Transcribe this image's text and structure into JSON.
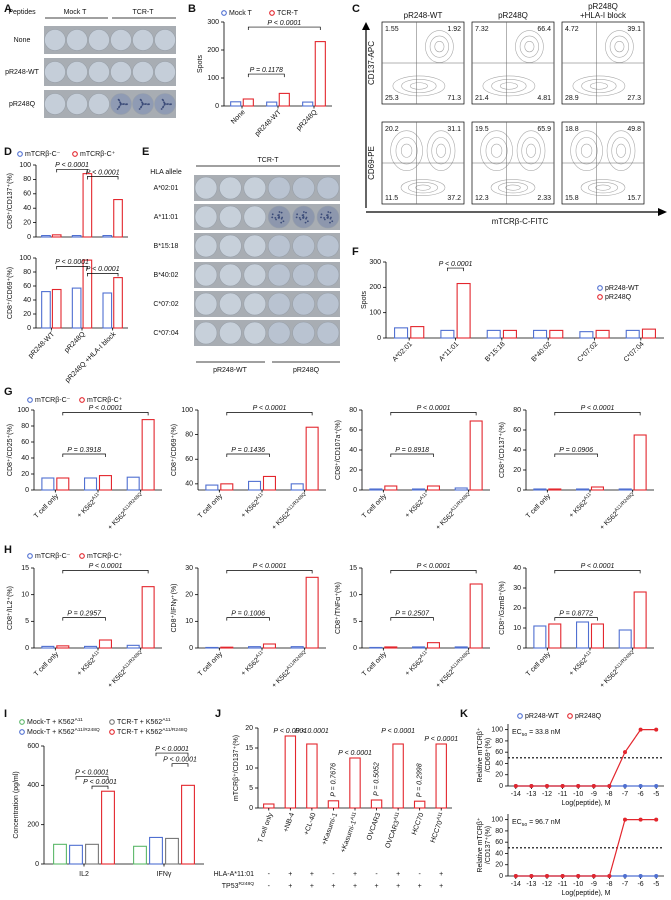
{
  "panel_labels": [
    "A",
    "B",
    "C",
    "D",
    "E",
    "F",
    "G",
    "H",
    "I",
    "J",
    "K"
  ],
  "elispot_a": {
    "corner": "Peptides",
    "columns": [
      "Mock T",
      "TCR-T"
    ],
    "rows": [
      "None",
      "pR248-WT",
      "pR248Q"
    ]
  },
  "flow_c": {
    "column_titles": [
      [
        "pR248-WT"
      ],
      [
        "pR248Q"
      ],
      [
        "pR248Q",
        "+HLA-I block"
      ]
    ],
    "y_labels": [
      "CD137-APC",
      "CD69-PE"
    ],
    "x_label": "mTCRβ-C-FITC",
    "quadrants": [
      [
        [
          1.55,
          1.92,
          25.3,
          71.3
        ],
        [
          7.32,
          66.4,
          21.4,
          4.81
        ],
        [
          4.72,
          39.1,
          28.9,
          27.3
        ]
      ],
      [
        [
          20.2,
          31.1,
          11.5,
          37.2
        ],
        [
          19.5,
          65.9,
          12.3,
          2.33
        ],
        [
          18.8,
          49.8,
          15.8,
          15.7
        ]
      ]
    ]
  },
  "elispot_e": {
    "header": "TCR-T",
    "row_header": "HLA allele",
    "rows": [
      "A*02:01",
      "A*11:01",
      "B*15:18",
      "B*40:02",
      "C*07:02",
      "C*07:04"
    ],
    "groups": [
      "pR248-WT",
      "pR248Q"
    ]
  },
  "chart_data": [
    {
      "type": "bar",
      "y_label": "Spots",
      "categories": [
        "None",
        "pR248-WT",
        "pR248Q"
      ],
      "series": [
        {
          "name": "Mock T",
          "color": "#4f6fd1",
          "values": [
            15,
            14,
            14
          ]
        },
        {
          "name": "TCR-T",
          "color": "#e3262d",
          "values": [
            25,
            45,
            230
          ]
        }
      ],
      "ylim": [
        0,
        300
      ],
      "yticks": [
        0,
        100,
        200,
        300
      ],
      "annotations": [
        "P = 0.1178",
        "P < 0.0001"
      ]
    },
    {
      "type": "bar",
      "y_label": "CD8⁺/CD137⁺(%)",
      "categories": [
        null,
        null,
        null
      ],
      "series": [
        {
          "name": "mTCRβ-C⁻",
          "color": "#4f6fd1",
          "values": [
            2,
            2,
            2
          ]
        },
        {
          "name": "mTCRβ-C⁺",
          "color": "#e3262d",
          "values": [
            3,
            88,
            52
          ]
        }
      ],
      "ylim": [
        0,
        100
      ],
      "yticks": [
        0,
        20,
        40,
        60,
        80,
        100
      ],
      "annotations": [
        "P < 0.0001",
        "P < 0.0001"
      ]
    },
    {
      "type": "bar",
      "y_label": "CD8⁺/CD69⁺(%)",
      "categories": [
        "pR248-WT",
        "pR248Q",
        "pR248Q +HLA-I block"
      ],
      "series": [
        {
          "color": "#4f6fd1",
          "values": [
            52,
            57,
            50
          ]
        },
        {
          "color": "#e3262d",
          "values": [
            55,
            97,
            72
          ]
        }
      ],
      "ylim": [
        0,
        100
      ],
      "yticks": [
        0,
        20,
        40,
        60,
        80,
        100
      ],
      "annotations": [
        "P < 0.0001",
        "P < 0.0001"
      ]
    },
    {
      "type": "bar",
      "y_label": "Spots",
      "categories": [
        "A*02:01",
        "A*11:01",
        "B*15:18",
        "B*40:02",
        "C*07:02",
        "C*07:04"
      ],
      "series": [
        {
          "name": "pR248-WT",
          "color": "#4f6fd1",
          "values": [
            40,
            30,
            30,
            30,
            25,
            30
          ]
        },
        {
          "name": "pR248Q",
          "color": "#e3262d",
          "values": [
            45,
            215,
            30,
            30,
            30,
            35
          ]
        }
      ],
      "ylim": [
        0,
        300
      ],
      "yticks": [
        0,
        100,
        200,
        300
      ],
      "annotations": [
        "P < 0.0001"
      ]
    },
    {
      "type": "bar",
      "y_label": "CD8⁺/CD25⁺(%)",
      "categories": [
        "T cell only",
        "+ K562",
        "+ K562"
      ],
      "category_sups": [
        null,
        "A11",
        "A11/R248Q"
      ],
      "series": [
        {
          "name": "mTCRβ-C⁻",
          "color": "#4f6fd1",
          "values": [
            15,
            15,
            16
          ]
        },
        {
          "name": "mTCRβ-C⁺",
          "color": "#e3262d",
          "values": [
            15,
            18,
            88
          ]
        }
      ],
      "ylim": [
        0,
        100
      ],
      "yticks": [
        0,
        20,
        40,
        60,
        80,
        100
      ],
      "annotations": [
        "P = 0.3918",
        "P < 0.0001"
      ]
    },
    {
      "type": "bar",
      "y_label": "CD8⁺/CD69⁺(%)",
      "categories": [
        "T cell only",
        "+ K562",
        "+ K562"
      ],
      "category_sups": [
        null,
        "A11",
        "A11/R248Q"
      ],
      "series": [
        {
          "color": "#4f6fd1",
          "values": [
            39,
            42,
            40
          ]
        },
        {
          "color": "#e3262d",
          "values": [
            40,
            46,
            86
          ]
        }
      ],
      "ylim": [
        35,
        100
      ],
      "yticks": [
        40,
        60,
        80,
        100
      ],
      "annotations": [
        "P = 0.1436",
        "P < 0.0001"
      ]
    },
    {
      "type": "bar",
      "y_label": "CD8⁺/CD107a⁺(%)",
      "categories": [
        "T cell only",
        "+ K562",
        "+ K562"
      ],
      "category_sups": [
        null,
        "A11",
        "A11/R248Q"
      ],
      "series": [
        {
          "color": "#4f6fd1",
          "values": [
            1,
            1,
            2
          ]
        },
        {
          "color": "#e3262d",
          "values": [
            4,
            4,
            69
          ]
        }
      ],
      "ylim": [
        0,
        80
      ],
      "yticks": [
        0,
        20,
        40,
        60,
        80
      ],
      "annotations": [
        "P = 0.8918",
        "P < 0.0001"
      ]
    },
    {
      "type": "bar",
      "y_label": "CD8⁺/CD137⁺(%)",
      "categories": [
        "T cell only",
        "+ K562",
        "+ K562"
      ],
      "category_sups": [
        null,
        "A11",
        "A11/R248Q"
      ],
      "series": [
        {
          "color": "#4f6fd1",
          "values": [
            1,
            1,
            1
          ]
        },
        {
          "color": "#e3262d",
          "values": [
            1,
            3,
            55
          ]
        }
      ],
      "ylim": [
        0,
        80
      ],
      "yticks": [
        0,
        20,
        40,
        60,
        80
      ],
      "annotations": [
        "P = 0.0906",
        "P < 0.0001"
      ]
    },
    {
      "type": "bar",
      "y_label": "CD8⁺/IL2⁺(%)",
      "categories": [
        "T cell only",
        "+ K562",
        "+ K562"
      ],
      "category_sups": [
        null,
        "A11",
        "A11/R248Q"
      ],
      "series": [
        {
          "name": "mTCRβ-C⁻",
          "color": "#4f6fd1",
          "values": [
            0.3,
            0.3,
            0.5
          ]
        },
        {
          "name": "mTCRβ-C⁺",
          "color": "#e3262d",
          "values": [
            0.4,
            1.5,
            11.5
          ]
        }
      ],
      "ylim": [
        0,
        15
      ],
      "yticks": [
        0,
        5,
        10,
        15
      ],
      "annotations": [
        "P = 0.2957",
        "P < 0.0001"
      ]
    },
    {
      "type": "bar",
      "y_label": "CD8⁺/IFNγ⁺(%)",
      "categories": [
        "T cell only",
        "+ K562",
        "+ K562"
      ],
      "category_sups": [
        null,
        "A11",
        "A11/R248Q"
      ],
      "series": [
        {
          "color": "#4f6fd1",
          "values": [
            0.2,
            0.5,
            0.5
          ]
        },
        {
          "color": "#e3262d",
          "values": [
            0.3,
            1.5,
            26.5
          ]
        }
      ],
      "ylim": [
        0,
        30
      ],
      "yticks": [
        0,
        10,
        20,
        30
      ],
      "annotations": [
        "P = 0.1006",
        "P < 0.0001"
      ]
    },
    {
      "type": "bar",
      "y_label": "CD8⁺/TNFα⁺(%)",
      "categories": [
        "T cell only",
        "+ K562",
        "+ K562"
      ],
      "category_sups": [
        null,
        "A11",
        "A11/R248Q"
      ],
      "series": [
        {
          "color": "#4f6fd1",
          "values": [
            0.1,
            0.2,
            0.2
          ]
        },
        {
          "color": "#e3262d",
          "values": [
            0.2,
            1,
            12
          ]
        }
      ],
      "ylim": [
        0,
        15
      ],
      "yticks": [
        0,
        5,
        10,
        15
      ],
      "annotations": [
        "P = 0.2507",
        "P < 0.0001"
      ]
    },
    {
      "type": "bar",
      "y_label": "CD8⁺/GzmB⁺(%)",
      "categories": [
        "T cell only",
        "+ K562",
        "+ K562"
      ],
      "category_sups": [
        null,
        "A11",
        "A11/R248Q"
      ],
      "series": [
        {
          "color": "#4f6fd1",
          "values": [
            11,
            13,
            9
          ]
        },
        {
          "color": "#e3262d",
          "values": [
            12,
            12,
            28
          ]
        }
      ],
      "ylim": [
        0,
        40
      ],
      "yticks": [
        0,
        10,
        20,
        30,
        40
      ],
      "annotations": [
        "P = 0.8772",
        "P < 0.0001"
      ]
    },
    {
      "type": "bar",
      "y_label": "Concentration (pg/ml)",
      "categories": [
        "IL2",
        "IFNγ"
      ],
      "series": [
        {
          "name": "Mock-T + K562",
          "name_sup": "A11",
          "color": "#5cb86a",
          "values": [
            100,
            90
          ]
        },
        {
          "name": "Mock-T + K562",
          "name_sup": "A11/R248Q",
          "color": "#4f6fd1",
          "values": [
            95,
            135
          ]
        },
        {
          "name": "TCR-T + K562",
          "name_sup": "A11",
          "color": "#777777",
          "values": [
            100,
            130
          ]
        },
        {
          "name": "TCR-T + K562",
          "name_sup": "A11/R248Q",
          "color": "#e3262d",
          "values": [
            370,
            400
          ]
        }
      ],
      "ylim": [
        0,
        600
      ],
      "yticks": [
        0,
        200,
        400,
        600
      ],
      "annotations": [
        "P < 0.0001",
        "P < 0.0001",
        "P < 0.0001",
        "P < 0.0001"
      ]
    },
    {
      "type": "bar",
      "y_label": "mTCRβ⁺/CD137⁺(%)",
      "categories": [
        "T cell only",
        "+NB-4",
        "+CL-40",
        "+Kasumi-1",
        "+Kasumi-1",
        "OVCAR3",
        "OVCAR3",
        "HCC70",
        "HCC70"
      ],
      "category_sups": [
        null,
        null,
        null,
        null,
        "A11",
        null,
        "A11",
        null,
        "A11"
      ],
      "values": [
        1,
        18,
        16,
        1.8,
        12.5,
        2,
        16,
        1.7,
        16
      ],
      "color": "#e3262d",
      "ylim": [
        0,
        20
      ],
      "yticks": [
        0,
        5,
        10,
        15,
        20
      ],
      "annotations": [
        "P < 0.0001",
        "P < 0.0001",
        "P = 0.7676",
        "P < 0.0001",
        "P = 0.5052",
        "P < 0.0001",
        "P = 0.2998",
        "P < 0.0001"
      ],
      "rows": [
        {
          "label": "HLA-A*11:01",
          "signs": [
            "-",
            "+",
            "+",
            "-",
            "+",
            "-",
            "+",
            "-",
            "+"
          ]
        },
        {
          "label": "TP53",
          "sup": "R248Q",
          "signs": [
            "-",
            "+",
            "+",
            "+",
            "+",
            "+",
            "+",
            "+",
            "+"
          ]
        }
      ]
    },
    {
      "type": "line",
      "y_label": [
        "Relative mTCRβ⁺",
        "/CD69⁺(%)"
      ],
      "x_label": "Log(peptide), M",
      "x": [
        -14,
        -13,
        -12,
        -11,
        -10,
        -9,
        -8,
        -7,
        -6,
        -5
      ],
      "series": [
        {
          "name": "pR248-WT",
          "color": "#4f6fd1",
          "values": [
            0,
            0,
            0,
            0,
            0,
            0,
            0,
            0,
            0,
            0
          ]
        },
        {
          "name": "pR248Q",
          "color": "#e3262d",
          "values": [
            0,
            0,
            0,
            0,
            0,
            0,
            0,
            60,
            100,
            100
          ]
        }
      ],
      "xlim": [
        -14.5,
        -4.5
      ],
      "xticks": [
        -14,
        -13,
        -12,
        -11,
        -10,
        -9,
        -8,
        -7,
        -6,
        -5
      ],
      "ylim": [
        0,
        110
      ],
      "yticks": [
        0,
        20,
        40,
        60,
        80,
        100
      ],
      "reference_line": 50,
      "ec50": [
        "EC",
        "50",
        " = 33.8 nM"
      ]
    },
    {
      "type": "line",
      "y_label": [
        "Relative mTCRβ⁺",
        "/CD137⁺(%)"
      ],
      "x_label": "Log(peptide), M",
      "x": [
        -14,
        -13,
        -12,
        -11,
        -10,
        -9,
        -8,
        -7,
        -6,
        -5
      ],
      "series": [
        {
          "color": "#4f6fd1",
          "values": [
            0,
            0,
            0,
            0,
            0,
            0,
            0,
            0,
            0,
            0
          ]
        },
        {
          "color": "#e3262d",
          "values": [
            0,
            0,
            0,
            0,
            0,
            0,
            0,
            100,
            100,
            100
          ]
        }
      ],
      "xlim": [
        -14.5,
        -4.5
      ],
      "xticks": [
        -14,
        -13,
        -12,
        -11,
        -10,
        -9,
        -8,
        -7,
        -6,
        -5
      ],
      "ylim": [
        0,
        110
      ],
      "yticks": [
        0,
        20,
        40,
        60,
        80,
        100
      ],
      "reference_line": 50,
      "ec50": [
        "EC",
        "50",
        " = 96.7 nM"
      ]
    }
  ]
}
